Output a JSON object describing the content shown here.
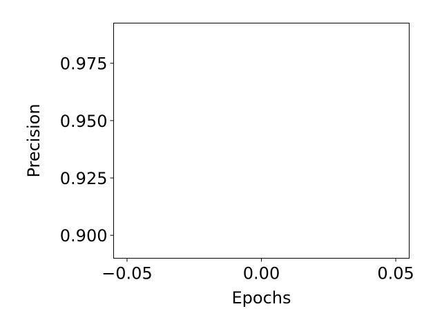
{
  "chart_data": {
    "type": "line",
    "title": "",
    "xlabel": "Epochs",
    "ylabel": "Precision",
    "xlim": [
      -0.055,
      0.055
    ],
    "ylim": [
      0.89,
      0.9925
    ],
    "x_ticks": [
      -0.05,
      0.0,
      0.05
    ],
    "x_tick_labels": [
      "−0.05",
      "0.00",
      "0.05"
    ],
    "y_ticks": [
      0.9,
      0.925,
      0.95,
      0.975
    ],
    "y_tick_labels": [
      "0.900",
      "0.925",
      "0.950",
      "0.975"
    ],
    "grid": false,
    "legend": "none",
    "series": [],
    "colors": {
      "axes": "#000000",
      "background": "#ffffff"
    }
  }
}
